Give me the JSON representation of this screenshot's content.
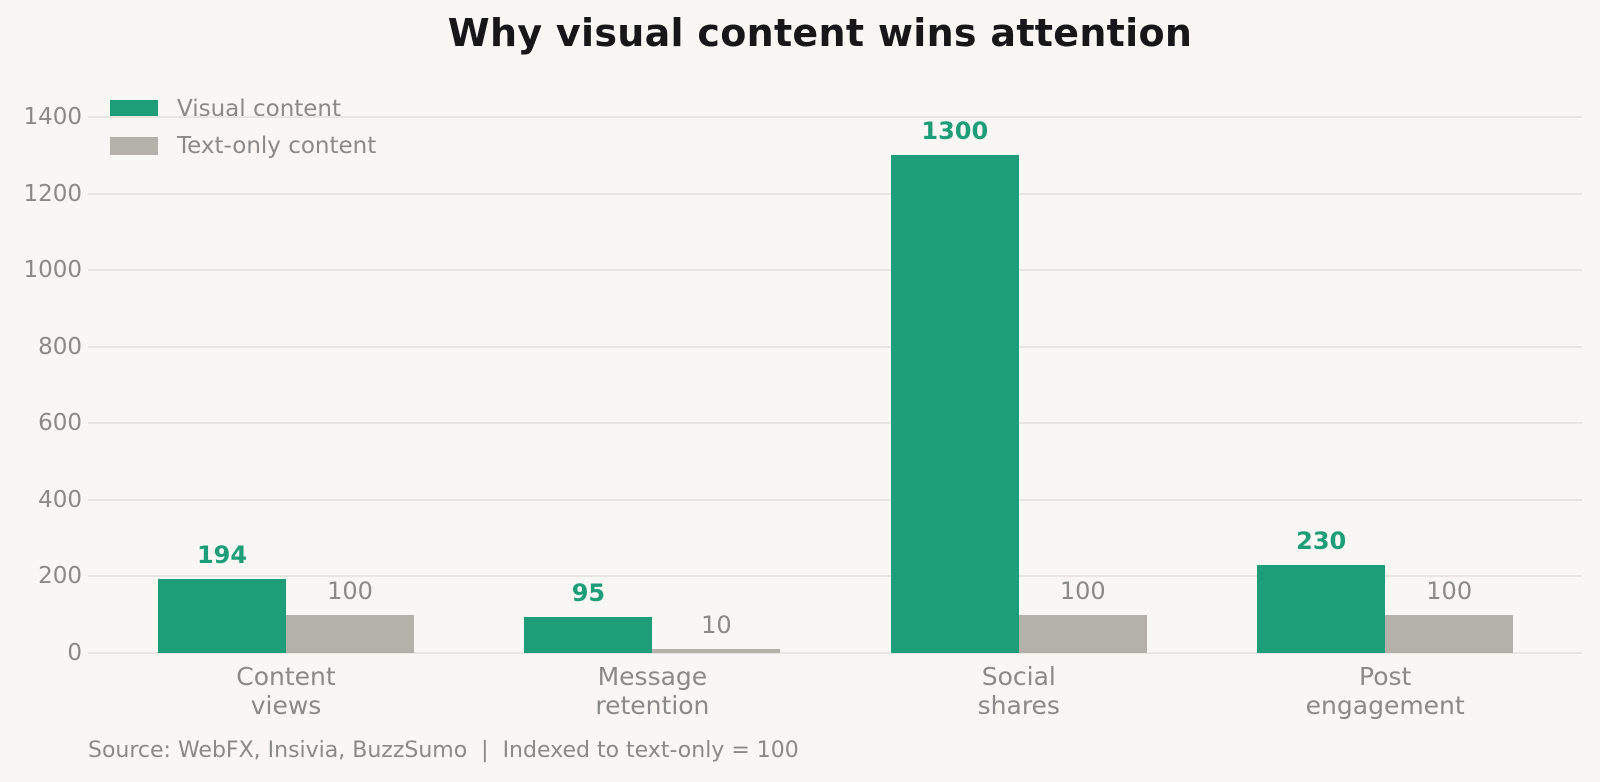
{
  "title": "Why visual content wins attention",
  "source_note": "Source: WebFX, Insivia, BuzzSumo  |  Indexed to text-only = 100",
  "colors": {
    "background": "#f8f7f4",
    "gridline": "#e9e6e1",
    "axis_text": "#8a8a88",
    "title_text": "#17171a",
    "visual_green": "#1e9e78",
    "text_only_gray": "#b4b1aa"
  },
  "legend": {
    "items": [
      {
        "label": "Visual content",
        "color": "#1e9e78"
      },
      {
        "label": "Text-only content",
        "color": "#b4b1aa"
      }
    ]
  },
  "chart_data": {
    "type": "bar",
    "categories": [
      "Content views",
      "Message retention",
      "Social shares",
      "Post engagement"
    ],
    "category_lines": [
      [
        "Content",
        "views"
      ],
      [
        "Message",
        "retention"
      ],
      [
        "Social",
        "shares"
      ],
      [
        "Post",
        "engagement"
      ]
    ],
    "series": [
      {
        "name": "Visual content",
        "color": "#1e9e78",
        "values": [
          194,
          95,
          1300,
          230
        ]
      },
      {
        "name": "Text-only content",
        "color": "#b4b1aa",
        "values": [
          100,
          10,
          100,
          100
        ]
      }
    ],
    "xlabel": "",
    "ylabel": "",
    "ylim": [
      0,
      1400
    ],
    "yticks": [
      0,
      200,
      400,
      600,
      800,
      1000,
      1200,
      1400
    ],
    "grid": true,
    "legend_position": "upper-left"
  }
}
